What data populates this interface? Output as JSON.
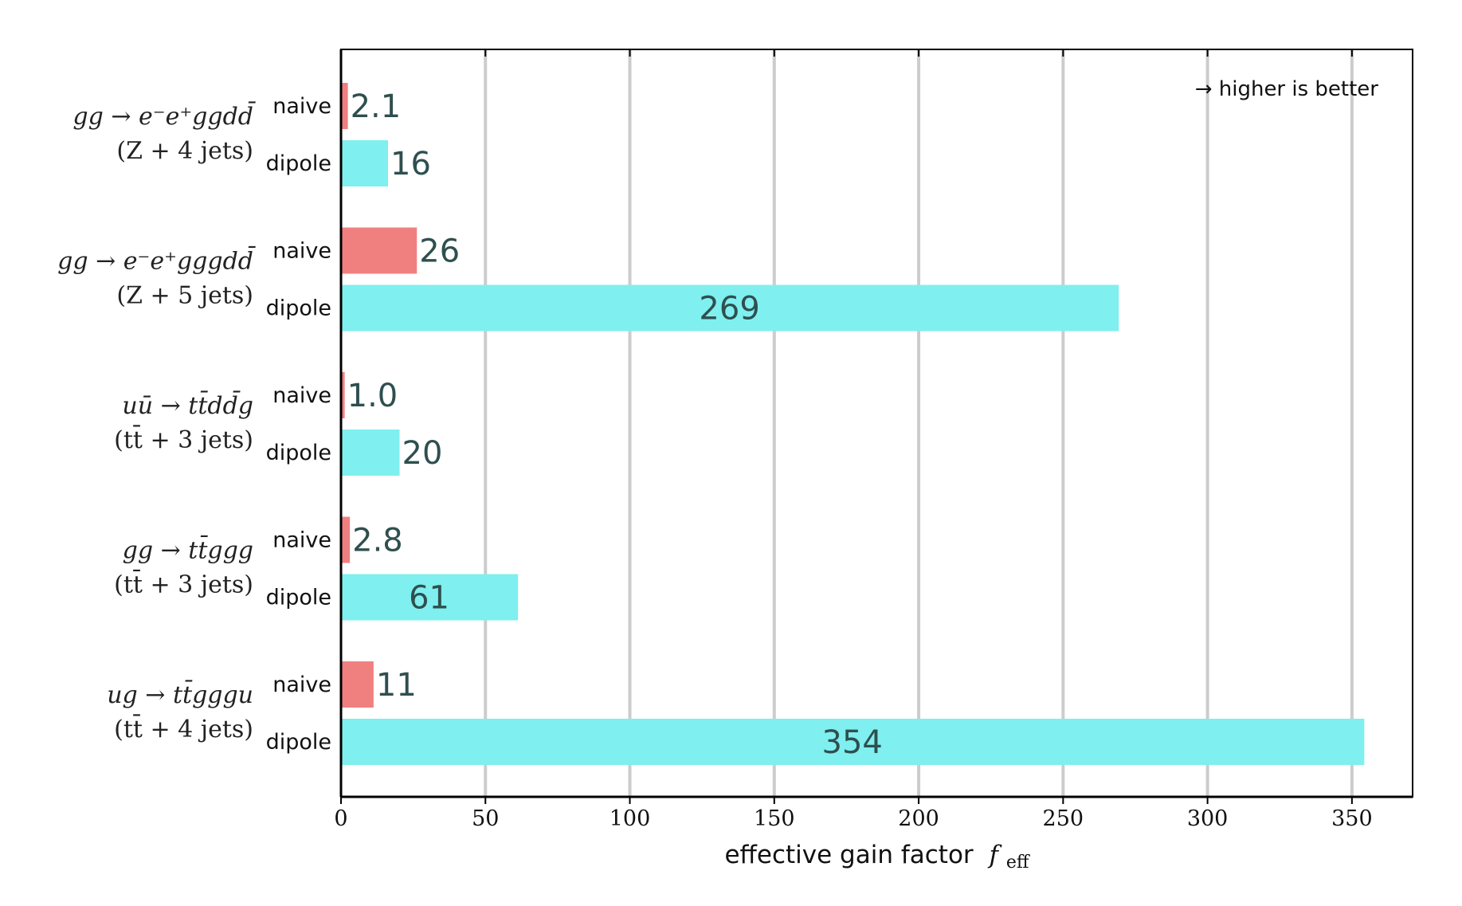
{
  "chart_data": {
    "type": "bar",
    "orientation": "horizontal",
    "xlabel": "effective gain factor",
    "xlabel_symbol": "f",
    "xlabel_subscript": "eff",
    "xlim": [
      0,
      371
    ],
    "xticks": [
      0,
      50,
      100,
      150,
      200,
      250,
      300,
      350
    ],
    "grid": "vertical",
    "annotation": "→ higher is better",
    "series_colors": {
      "naive": "#f08080",
      "dipole": "#7fefef"
    },
    "groups": [
      {
        "process": "gg → e⁻e⁺ggdd̄",
        "subtitle": "(Z + 4 jets)",
        "bars": [
          {
            "name": "naive",
            "value": 2.1,
            "label": "2.1"
          },
          {
            "name": "dipole",
            "value": 16,
            "label": "16"
          }
        ]
      },
      {
        "process": "gg → e⁻e⁺gggdd̄",
        "subtitle": "(Z + 5 jets)",
        "bars": [
          {
            "name": "naive",
            "value": 26,
            "label": "26"
          },
          {
            "name": "dipole",
            "value": 269,
            "label": "269"
          }
        ]
      },
      {
        "process": "uū → tt̄dd̄g",
        "subtitle": "(tt̄ + 3 jets)",
        "bars": [
          {
            "name": "naive",
            "value": 1.0,
            "label": "1.0"
          },
          {
            "name": "dipole",
            "value": 20,
            "label": "20"
          }
        ]
      },
      {
        "process": "gg → tt̄ggg",
        "subtitle": "(tt̄ + 3 jets)",
        "bars": [
          {
            "name": "naive",
            "value": 2.8,
            "label": "2.8"
          },
          {
            "name": "dipole",
            "value": 61,
            "label": "61"
          }
        ]
      },
      {
        "process": "ug → tt̄gggu",
        "subtitle": "(tt̄ + 4 jets)",
        "bars": [
          {
            "name": "naive",
            "value": 11,
            "label": "11"
          },
          {
            "name": "dipole",
            "value": 354,
            "label": "354"
          }
        ]
      }
    ]
  }
}
